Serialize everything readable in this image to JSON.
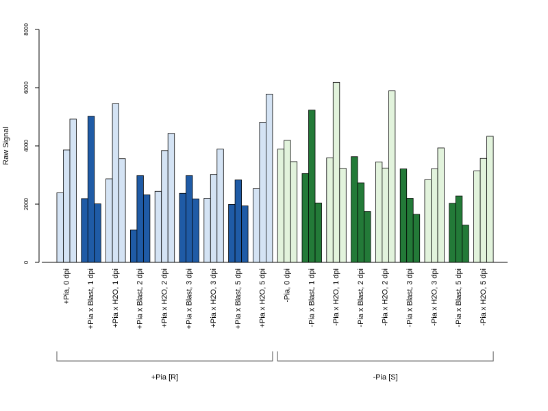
{
  "chart_data": {
    "type": "bar",
    "ylabel": "Raw Signal",
    "ylim": [
      0,
      8000
    ],
    "yticks": [
      "0",
      "2000",
      "4000",
      "6000",
      "8000"
    ],
    "grid": false,
    "legend": "none",
    "colors": {
      "light_blue": "#d4e3f4",
      "dark_blue": "#1f5ba6",
      "light_green": "#e2f3dc",
      "dark_green": "#237a38",
      "axis": "#000000",
      "bracket": "#555555"
    },
    "categories": [
      {
        "label": "+Pia, 0 dpi",
        "values": [
          2390,
          3860,
          4920
        ],
        "color": "light_blue"
      },
      {
        "label": "+Pia x Blast, 1 dpi",
        "values": [
          2190,
          5020,
          2010
        ],
        "color": "dark_blue"
      },
      {
        "label": "+Pia x H2O, 1 dpi",
        "values": [
          2870,
          5450,
          3560
        ],
        "color": "light_blue"
      },
      {
        "label": "+Pia x Blast, 2 dpi",
        "values": [
          1110,
          2980,
          2320
        ],
        "color": "dark_blue"
      },
      {
        "label": "+Pia x H2O, 2 dpi",
        "values": [
          2440,
          3840,
          4430
        ],
        "color": "light_blue"
      },
      {
        "label": "+Pia x Blast, 3 dpi",
        "values": [
          2370,
          2980,
          2180
        ],
        "color": "dark_blue"
      },
      {
        "label": "+Pia x H2O, 3 dpi",
        "values": [
          2200,
          3020,
          3890
        ],
        "color": "light_blue"
      },
      {
        "label": "+Pia x Blast, 5 dpi",
        "values": [
          1990,
          2830,
          1940
        ],
        "color": "dark_blue"
      },
      {
        "label": "+Pia x H2O, 5 dpi",
        "values": [
          2530,
          4810,
          5780
        ],
        "color": "light_blue"
      },
      {
        "label": "-Pia, 0 dpi",
        "values": [
          3890,
          4190,
          3460
        ],
        "color": "light_green"
      },
      {
        "label": "-Pia x Blast, 1 dpi",
        "values": [
          3050,
          5230,
          2040
        ],
        "color": "dark_green"
      },
      {
        "label": "-Pia x H2O, 1 dpi",
        "values": [
          3590,
          6180,
          3230
        ],
        "color": "light_green"
      },
      {
        "label": "-Pia x Blast, 2 dpi",
        "values": [
          3630,
          2730,
          1750
        ],
        "color": "dark_green"
      },
      {
        "label": "-Pia x H2O, 2 dpi",
        "values": [
          3450,
          3240,
          5890
        ],
        "color": "light_green"
      },
      {
        "label": "-Pia x Blast, 3 dpi",
        "values": [
          3210,
          2200,
          1650
        ],
        "color": "dark_green"
      },
      {
        "label": "-Pia x H2O, 3 dpi",
        "values": [
          2840,
          3210,
          3930
        ],
        "color": "light_green"
      },
      {
        "label": "-Pia x Blast, 5 dpi",
        "values": [
          2030,
          2280,
          1280
        ],
        "color": "dark_green"
      },
      {
        "label": "-Pia x H2O, 5 dpi",
        "values": [
          3140,
          3570,
          4330
        ],
        "color": "light_green"
      }
    ],
    "groups": [
      {
        "label": "+Pia [R]",
        "from": 0,
        "to": 8
      },
      {
        "label": "-Pia [S]",
        "from": 9,
        "to": 17
      }
    ]
  }
}
